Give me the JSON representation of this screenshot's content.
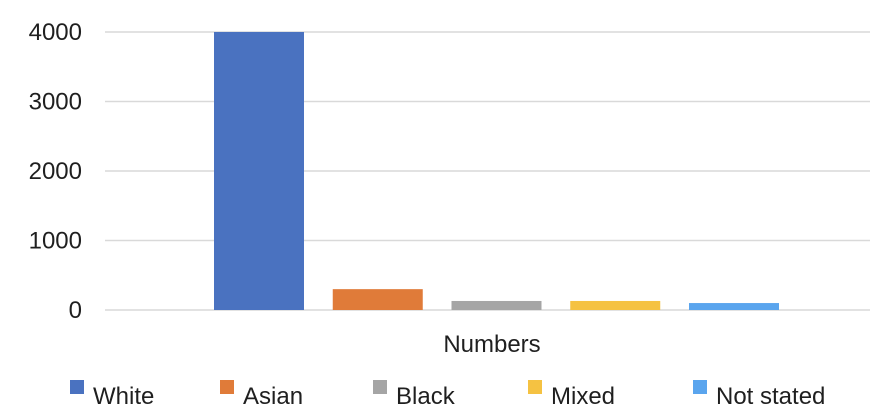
{
  "chart_data": {
    "type": "bar",
    "categories": [
      "Numbers"
    ],
    "series": [
      {
        "name": "White",
        "values": [
          4000
        ],
        "color": "#4a72c0"
      },
      {
        "name": "Asian",
        "values": [
          300
        ],
        "color": "#e07b39"
      },
      {
        "name": "Black",
        "values": [
          130
        ],
        "color": "#a5a5a5"
      },
      {
        "name": "Mixed",
        "values": [
          130
        ],
        "color": "#f5c242"
      },
      {
        "name": "Not stated",
        "values": [
          100
        ],
        "color": "#5aa5ee"
      }
    ],
    "title": "",
    "xlabel": "",
    "ylabel": "",
    "ylim": [
      0,
      4000
    ],
    "yticks": [
      "0",
      "1000",
      "2000",
      "3000",
      "4000"
    ],
    "grid": true,
    "legend_position": "bottom"
  }
}
